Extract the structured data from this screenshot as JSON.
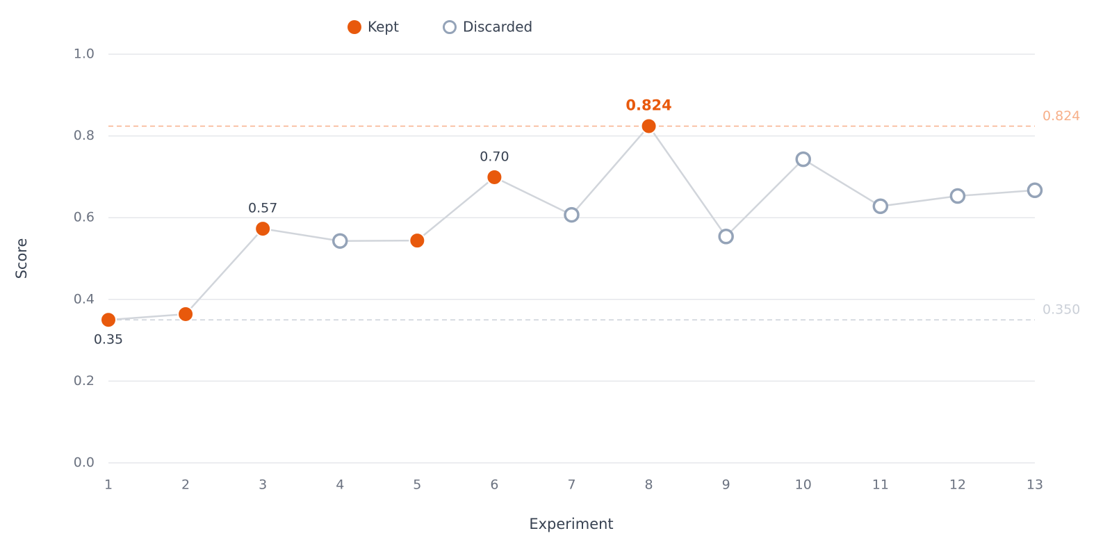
{
  "chart_data": {
    "type": "line",
    "x": [
      1,
      2,
      3,
      4,
      5,
      6,
      7,
      8,
      9,
      10,
      11,
      12,
      13
    ],
    "series": [
      {
        "name": "Kept",
        "color": "#e8590c",
        "filled": true,
        "values": [
          0.35,
          0.364,
          0.573,
          null,
          0.544,
          0.699,
          null,
          0.824,
          null,
          null,
          null,
          null,
          null
        ],
        "value_labels": [
          "0.35",
          null,
          "0.57",
          null,
          null,
          "0.70",
          null,
          "0.824",
          null,
          null,
          null,
          null,
          null
        ]
      },
      {
        "name": "Discarded",
        "color": "#94a3b8",
        "filled": false,
        "values": [
          null,
          null,
          null,
          0.543,
          null,
          null,
          0.607,
          null,
          0.554,
          0.743,
          0.628,
          0.653,
          0.667
        ]
      }
    ],
    "line_color": "#d1d5db",
    "reference_lines": [
      {
        "value": 0.824,
        "label": "0.824",
        "color": "#f7b08a"
      },
      {
        "value": 0.35,
        "label": "0.350",
        "color": "#cbd0d8"
      }
    ],
    "xlim": [
      1,
      13
    ],
    "xticks": [
      1,
      2,
      3,
      4,
      5,
      6,
      7,
      8,
      9,
      10,
      11,
      12,
      13
    ],
    "ylim": [
      0,
      1
    ],
    "yticks": [
      {
        "value": 0,
        "label": "0.0"
      },
      {
        "value": 0.2,
        "label": "0.2"
      },
      {
        "value": 0.4,
        "label": "0.4"
      },
      {
        "value": 0.6,
        "label": "0.6"
      },
      {
        "value": 0.8,
        "label": "0.8"
      },
      {
        "value": 1,
        "label": "1.0"
      }
    ],
    "xlabel": "Experiment",
    "ylabel": "Score",
    "grid": true
  }
}
